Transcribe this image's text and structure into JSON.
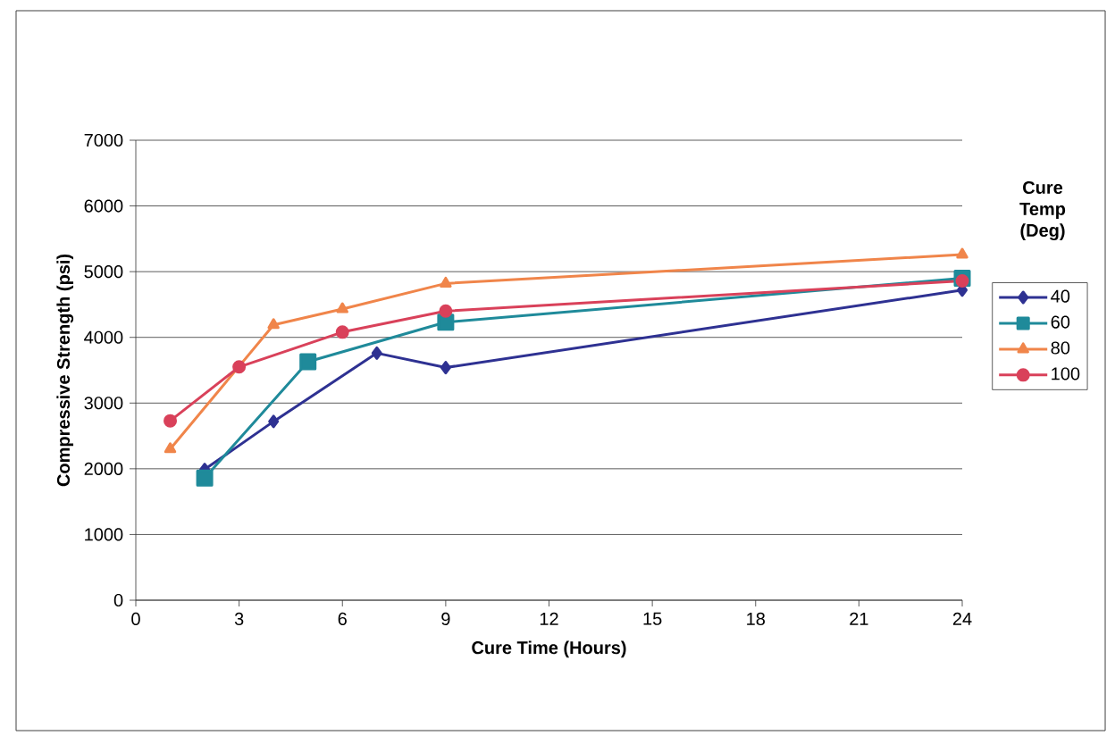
{
  "chart_data": {
    "type": "line",
    "xlabel": "Cure Time (Hours)",
    "ylabel": "Compressive Strength (psi)",
    "legend_title": "Cure Temp (Deg)",
    "xlim": [
      0,
      24
    ],
    "xticks": [
      0,
      3,
      6,
      9,
      12,
      15,
      18,
      21,
      24
    ],
    "ylim": [
      0,
      7000
    ],
    "yticks": [
      0,
      1000,
      2000,
      3000,
      4000,
      5000,
      6000,
      7000
    ],
    "grid": "y",
    "legend": "right",
    "line_style": "solid",
    "series": [
      {
        "name": "40",
        "color": "#2e3192",
        "marker": "diamond",
        "x": [
          2,
          4,
          7,
          9,
          24
        ],
        "values": [
          1990,
          2720,
          3760,
          3540,
          4720
        ]
      },
      {
        "name": "60",
        "color": "#1f8a9a",
        "marker": "square",
        "x": [
          2,
          5,
          9,
          24
        ],
        "values": [
          1860,
          3630,
          4230,
          4900
        ]
      },
      {
        "name": "80",
        "color": "#f0854a",
        "marker": "triangle",
        "x": [
          1,
          4,
          6,
          9,
          24
        ],
        "values": [
          2300,
          4190,
          4430,
          4820,
          5260
        ]
      },
      {
        "name": "100",
        "color": "#d9415a",
        "marker": "circle",
        "x": [
          1,
          3,
          6,
          9,
          24
        ],
        "values": [
          2730,
          3550,
          4080,
          4400,
          4860
        ]
      }
    ]
  }
}
